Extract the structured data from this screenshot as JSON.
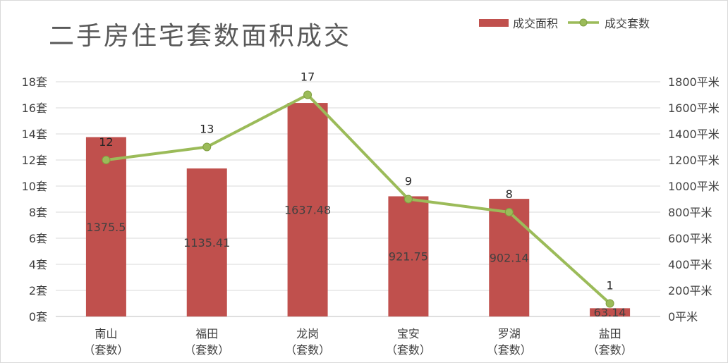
{
  "chart_data": {
    "type": "bar+line",
    "title": "二手房住宅套数面积成交",
    "categories": [
      [
        "南山",
        "（套数）"
      ],
      [
        "福田",
        "（套数）"
      ],
      [
        "龙岗",
        "（套数）"
      ],
      [
        "宝安",
        "（套数）"
      ],
      [
        "罗湖",
        "（套数）"
      ],
      [
        "盐田",
        "（套数）"
      ]
    ],
    "series": [
      {
        "name": "成交面积",
        "type": "bar",
        "axis": "right",
        "color": "#c0504d",
        "values": [
          1375.5,
          1135.41,
          1637.48,
          921.75,
          902.14,
          63.14
        ],
        "labels": [
          "1375.5",
          "1135.41",
          "1637.48",
          "921.75",
          "902.14",
          "63.14"
        ]
      },
      {
        "name": "成交套数",
        "type": "line",
        "axis": "left",
        "color": "#9bbb59",
        "values": [
          12,
          13,
          17,
          9,
          8,
          1
        ],
        "labels": [
          "12",
          "13",
          "17",
          "9",
          "8",
          "1"
        ]
      }
    ],
    "left_axis": {
      "min": 0,
      "max": 18,
      "step": 2,
      "ticks": [
        "0套",
        "2套",
        "4套",
        "6套",
        "8套",
        "10套",
        "12套",
        "14套",
        "16套",
        "18套"
      ]
    },
    "right_axis": {
      "min": 0,
      "max": 1800,
      "step": 200,
      "ticks": [
        "0平米",
        "200平米",
        "400平米",
        "600平米",
        "800平米",
        "1000平米",
        "1200平米",
        "1400平米",
        "1600平米",
        "1800平米"
      ]
    },
    "grid": true,
    "legend": "top-right"
  }
}
